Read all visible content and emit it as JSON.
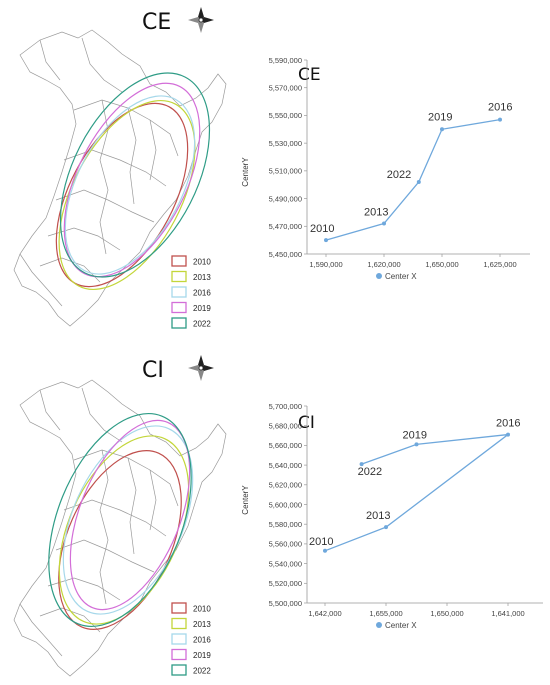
{
  "maps": [
    {
      "title": "CE",
      "compass_icon": "compass-rose-icon",
      "legend": [
        "2010",
        "2013",
        "2016",
        "2019",
        "2022"
      ]
    },
    {
      "title": "CI",
      "compass_icon": "compass-rose-icon",
      "legend": [
        "2010",
        "2013",
        "2016",
        "2019",
        "2022"
      ]
    }
  ],
  "colors": {
    "2010": "#c0504d",
    "2013": "#c3d63a",
    "2016": "#a6d8ea",
    "2019": "#d36ed8",
    "2022": "#2e9c86",
    "line": "#6fa8dc",
    "axis": "#999999",
    "map_border": "#9a9a9a"
  },
  "chart_data": [
    {
      "type": "line",
      "title": "CE",
      "xlabel": "Center X",
      "ylabel": "CenterY",
      "legend_label": "Center X",
      "x_ticks": [
        "1,590,000",
        "1,620,000",
        "1,650,000",
        "1,625,000"
      ],
      "ylim": [
        5450000,
        5590000
      ],
      "y_ticks": [
        "5,450,000",
        "5,470,000",
        "5,490,000",
        "5,510,000",
        "5,530,000",
        "5,550,000",
        "5,570,000",
        "5,590,000"
      ],
      "points": [
        {
          "label": "2010",
          "x_index": 0,
          "y": 5460000
        },
        {
          "label": "2013",
          "x_index": 1,
          "y": 5472000
        },
        {
          "label": "2022",
          "x_index": 1.6,
          "y": 5502000
        },
        {
          "label": "2019",
          "x_index": 2,
          "y": 5540000
        },
        {
          "label": "2016",
          "x_index": 3,
          "y": 5547000
        }
      ]
    },
    {
      "type": "line",
      "title": "CI",
      "xlabel": "Center X",
      "ylabel": "CenterY",
      "legend_label": "Center X",
      "x_ticks": [
        "1,642,000",
        "1,655,000",
        "1,650,000",
        "1,641,000"
      ],
      "ylim": [
        5500000,
        5700000
      ],
      "y_ticks": [
        "5,500,000",
        "5,520,000",
        "5,540,000",
        "5,560,000",
        "5,580,000",
        "5,600,000",
        "5,620,000",
        "5,640,000",
        "5,660,000",
        "5,680,000",
        "5,700,000"
      ],
      "points": [
        {
          "label": "2010",
          "x_index": 0,
          "y": 5553000
        },
        {
          "label": "2013",
          "x_index": 1,
          "y": 5577000
        },
        {
          "label": "2016",
          "x_index": 3,
          "y": 5671000
        },
        {
          "label": "2019",
          "x_index": 1.5,
          "y": 5661000
        },
        {
          "label": "2022",
          "x_index": 0.6,
          "y": 5641000
        }
      ]
    }
  ]
}
